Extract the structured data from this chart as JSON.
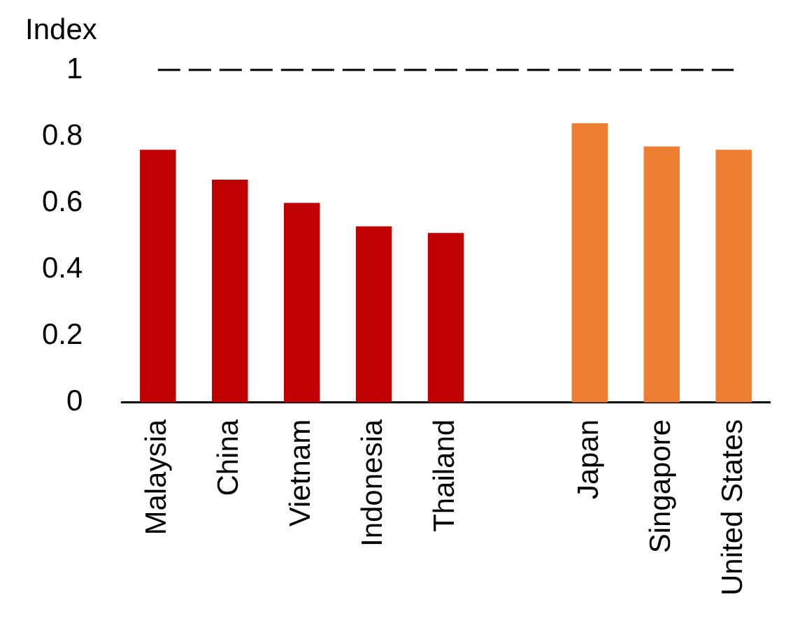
{
  "chart_data": {
    "type": "bar",
    "ylabel": "Index",
    "categories": [
      "Malaysia",
      "China",
      "Vietnam",
      "Indonesia",
      "Thailand",
      null,
      "Japan",
      "Singapore",
      "United States"
    ],
    "values": [
      0.76,
      0.67,
      0.6,
      0.53,
      0.51,
      null,
      0.84,
      0.77,
      0.76
    ],
    "colors": [
      "#c00000",
      "#c00000",
      "#c00000",
      "#c00000",
      "#c00000",
      null,
      "#ed7d31",
      "#ed7d31",
      "#ed7d31"
    ],
    "ylim": [
      0,
      1
    ],
    "yticks": [
      0,
      0.2,
      0.4,
      0.6,
      0.8,
      1
    ],
    "ref_lines": [
      {
        "axis": "y",
        "value": 1,
        "color": "#000000",
        "line_style": "dashed"
      }
    ]
  }
}
